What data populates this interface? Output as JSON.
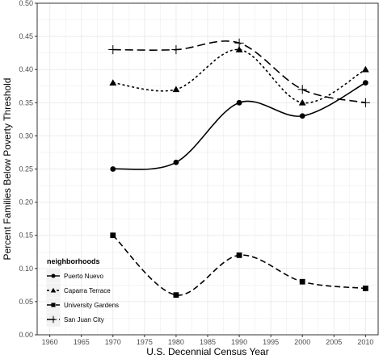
{
  "chart_data": {
    "type": "line",
    "title": "",
    "xlabel": "U.S. Decennial Census Year",
    "ylabel": "Percent Families Below Poverty Threshold",
    "xlim": [
      1958,
      2012
    ],
    "ylim": [
      0,
      0.5
    ],
    "x_ticks": [
      "1960",
      "1965",
      "1970",
      "1975",
      "1980",
      "1985",
      "1990",
      "1995",
      "2000",
      "2005",
      "2010"
    ],
    "y_ticks": [
      "0.00",
      "0.05",
      "0.10",
      "0.15",
      "0.20",
      "0.25",
      "0.30",
      "0.35",
      "0.40",
      "0.45",
      "0.50"
    ],
    "grid": true,
    "x": [
      1970,
      1980,
      1990,
      2000,
      2010
    ],
    "series": [
      {
        "name": "Puerto Nuevo",
        "values": [
          0.25,
          0.26,
          0.35,
          0.33,
          0.38
        ],
        "marker": "circle",
        "line": "solid"
      },
      {
        "name": "Caparra Terrace",
        "values": [
          0.38,
          0.37,
          0.43,
          0.35,
          0.4
        ],
        "marker": "triangle",
        "line": "dotted"
      },
      {
        "name": "University Gardens",
        "values": [
          0.15,
          0.06,
          0.12,
          0.08,
          0.07
        ],
        "marker": "square",
        "line": "dashed"
      },
      {
        "name": "San Juan City",
        "values": [
          0.43,
          0.43,
          0.44,
          0.37,
          0.35
        ],
        "marker": "plus",
        "line": "longdash"
      }
    ],
    "legend": {
      "title": "neighborhoods",
      "position": "bottom-left"
    }
  },
  "colors": {
    "line": "#000000",
    "grid": "#ebebeb",
    "axis_text": "#4d4d4d",
    "legend_key_bg": "#f2f2f2"
  }
}
